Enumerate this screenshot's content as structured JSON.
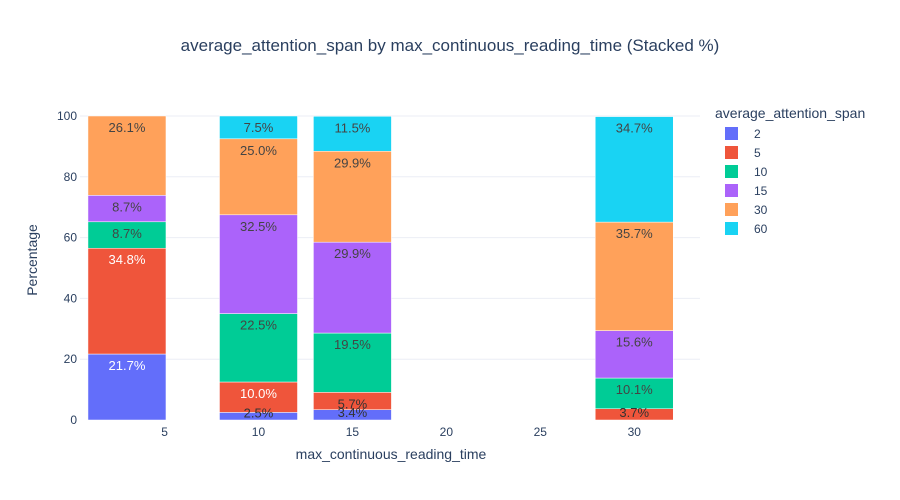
{
  "chart_data": {
    "type": "bar",
    "stacked": true,
    "title": "average_attention_span by max_continuous_reading_time (Stacked %)",
    "xlabel": "max_continuous_reading_time",
    "ylabel": "Percentage",
    "x": [
      3,
      10,
      15,
      30
    ],
    "xlim": [
      0.5,
      33.5
    ],
    "xticks": [
      5,
      10,
      15,
      20,
      25,
      30
    ],
    "ylim": [
      0,
      100
    ],
    "yticks": [
      0,
      20,
      40,
      60,
      80,
      100
    ],
    "legend_title": "average_attention_span",
    "legend_position": "right",
    "series": [
      {
        "name": "2",
        "color": "#636efa",
        "values": [
          21.7,
          2.5,
          3.4,
          0
        ],
        "labels": [
          "21.7%",
          "2.5%",
          "3.4%",
          ""
        ]
      },
      {
        "name": "5",
        "color": "#EF553B",
        "values": [
          34.8,
          10.0,
          5.7,
          3.7
        ],
        "labels": [
          "34.8%",
          "10.0%",
          "5.7%",
          "3.7%"
        ]
      },
      {
        "name": "10",
        "color": "#00cc96",
        "values": [
          8.7,
          22.5,
          19.5,
          10.1
        ],
        "labels": [
          "8.7%",
          "22.5%",
          "19.5%",
          "10.1%"
        ]
      },
      {
        "name": "15",
        "color": "#ab63fa",
        "values": [
          8.7,
          32.5,
          29.9,
          15.6
        ],
        "labels": [
          "8.7%",
          "32.5%",
          "29.9%",
          "15.6%"
        ]
      },
      {
        "name": "30",
        "color": "#FFA15A",
        "values": [
          26.1,
          25.0,
          29.9,
          35.7
        ],
        "labels": [
          "26.1%",
          "25.0%",
          "29.9%",
          "35.7%"
        ]
      },
      {
        "name": "60",
        "color": "#19d3f3",
        "values": [
          0,
          7.5,
          11.5,
          34.7
        ],
        "labels": [
          "",
          "7.5%",
          "11.5%",
          "34.7%"
        ]
      }
    ]
  }
}
